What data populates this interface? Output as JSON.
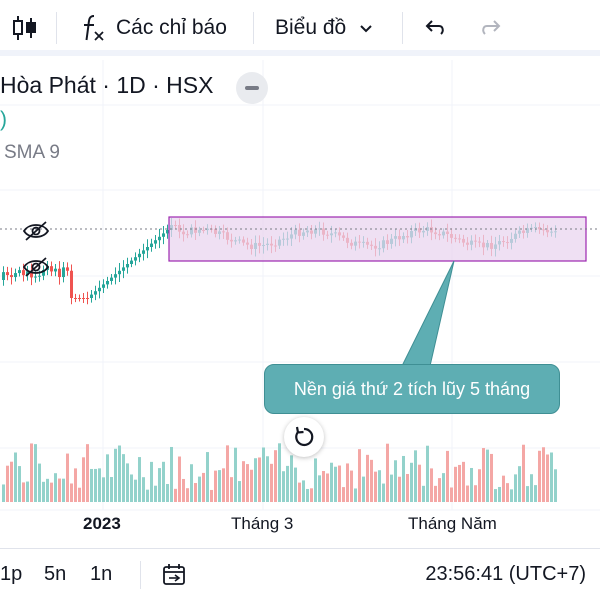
{
  "toolbar": {
    "candle_icon": "candlestick-icon",
    "indicators_icon": "fx-icon",
    "indicators_label": "Các chỉ báo",
    "chart_label": "Biểu đồ",
    "undo_icon": "undo-icon",
    "redo_icon": "redo-icon"
  },
  "legend": {
    "title": "Hòa Phát · 1D · HSX",
    "paren": ")",
    "sma": "SMA 9"
  },
  "annotation": {
    "callout_text": "Nền giá thứ 2 tích lũy 5 tháng"
  },
  "time_axis": {
    "labels": [
      "2023",
      "Tháng 3",
      "Tháng Năm"
    ]
  },
  "bottom": {
    "ranges": [
      "1p",
      "5n",
      "1n"
    ],
    "clock": "23:56:41 (UTC+7)"
  },
  "colors": {
    "up": "#26a69a",
    "down": "#ef5350",
    "up_volume": "#93d2cb",
    "down_volume": "#f4a7a5",
    "rectangle_fill": "#ead6ef",
    "rectangle_border": "#9c27b0",
    "callout": "#5eaeb3"
  }
}
